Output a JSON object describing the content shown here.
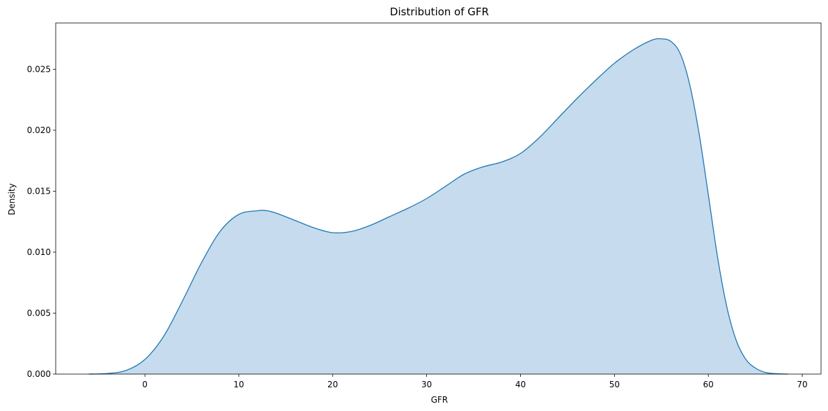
{
  "chart_data": {
    "type": "area",
    "title": "Distribution of GFR",
    "xlabel": "GFR",
    "ylabel": "Density",
    "xlim": [
      -9.5,
      72
    ],
    "ylim": [
      0,
      0.0288
    ],
    "x_ticks": [
      0,
      10,
      20,
      30,
      40,
      50,
      60,
      70
    ],
    "x_tick_labels": [
      "0",
      "10",
      "20",
      "30",
      "40",
      "50",
      "60",
      "70"
    ],
    "y_ticks": [
      0,
      0.005,
      0.01,
      0.015,
      0.02,
      0.025
    ],
    "y_tick_labels": [
      "0.000",
      "0.005",
      "0.010",
      "0.015",
      "0.020",
      "0.025"
    ],
    "grid": false,
    "line_color": "#1f77b4",
    "fill_color": "#c6dbed",
    "series": [
      {
        "x": [
          -6,
          -4,
          -2,
          0,
          2,
          4,
          6,
          8,
          10,
          12,
          13,
          14,
          16,
          18,
          20,
          22,
          24,
          26,
          28,
          30,
          32,
          34,
          36,
          38,
          40,
          42,
          44,
          46,
          48,
          50,
          52,
          54,
          55,
          56,
          57,
          58,
          59,
          60,
          61,
          62,
          63,
          64,
          65,
          66,
          67,
          68.5
        ],
        "y": [
          0,
          5e-05,
          0.0003,
          0.0012,
          0.0031,
          0.006,
          0.0091,
          0.0117,
          0.0131,
          0.0134,
          0.0134,
          0.0132,
          0.0126,
          0.012,
          0.0116,
          0.0117,
          0.0122,
          0.0129,
          0.0136,
          0.0144,
          0.0154,
          0.0164,
          0.017,
          0.0174,
          0.0181,
          0.0194,
          0.021,
          0.0226,
          0.0241,
          0.0255,
          0.0266,
          0.0274,
          0.0275,
          0.0273,
          0.0263,
          0.0238,
          0.0198,
          0.0147,
          0.0095,
          0.0054,
          0.0027,
          0.0012,
          0.0005,
          0.00015,
          4e-05,
          0
        ]
      }
    ]
  }
}
